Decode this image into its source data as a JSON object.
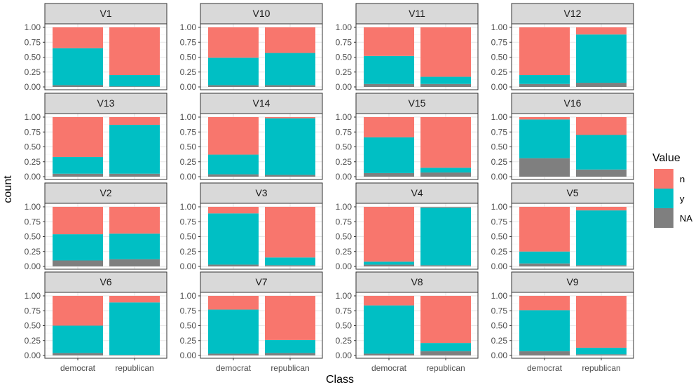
{
  "chart_data": {
    "type": "bar",
    "subtype": "stacked-proportion-facets",
    "xlabel": "Class",
    "ylabel": "count",
    "categories": [
      "democrat",
      "republican"
    ],
    "ylim": [
      0,
      1
    ],
    "yticks": [
      "0.00",
      "0.25",
      "0.50",
      "0.75",
      "1.00"
    ],
    "grid": true,
    "legend": {
      "title": "Value",
      "position": "right",
      "items": [
        {
          "key": "n",
          "label": "n",
          "color": "#F8766D"
        },
        {
          "key": "y",
          "label": "y",
          "color": "#00BFC4"
        },
        {
          "key": "na",
          "label": "NA",
          "color": "#7F7F7F"
        }
      ]
    },
    "facets": [
      {
        "label": "V1",
        "bars": [
          {
            "na": 0.03,
            "y": 0.62,
            "n": 0.35
          },
          {
            "na": 0.01,
            "y": 0.19,
            "n": 0.8
          }
        ]
      },
      {
        "label": "V10",
        "bars": [
          {
            "na": 0.03,
            "y": 0.46,
            "n": 0.51
          },
          {
            "na": 0.03,
            "y": 0.54,
            "n": 0.43
          }
        ]
      },
      {
        "label": "V11",
        "bars": [
          {
            "na": 0.05,
            "y": 0.47,
            "n": 0.48
          },
          {
            "na": 0.05,
            "y": 0.12,
            "n": 0.83
          }
        ]
      },
      {
        "label": "V12",
        "bars": [
          {
            "na": 0.05,
            "y": 0.15,
            "n": 0.8
          },
          {
            "na": 0.07,
            "y": 0.81,
            "n": 0.12
          }
        ]
      },
      {
        "label": "V13",
        "bars": [
          {
            "na": 0.05,
            "y": 0.28,
            "n": 0.67
          },
          {
            "na": 0.05,
            "y": 0.82,
            "n": 0.13
          }
        ]
      },
      {
        "label": "V14",
        "bars": [
          {
            "na": 0.04,
            "y": 0.33,
            "n": 0.63
          },
          {
            "na": 0.03,
            "y": 0.95,
            "n": 0.02
          }
        ]
      },
      {
        "label": "V15",
        "bars": [
          {
            "na": 0.06,
            "y": 0.6,
            "n": 0.34
          },
          {
            "na": 0.07,
            "y": 0.08,
            "n": 0.85
          }
        ]
      },
      {
        "label": "V16",
        "bars": [
          {
            "na": 0.31,
            "y": 0.65,
            "n": 0.04
          },
          {
            "na": 0.12,
            "y": 0.58,
            "n": 0.3
          }
        ]
      },
      {
        "label": "V2",
        "bars": [
          {
            "na": 0.1,
            "y": 0.44,
            "n": 0.46
          },
          {
            "na": 0.12,
            "y": 0.43,
            "n": 0.45
          }
        ]
      },
      {
        "label": "V3",
        "bars": [
          {
            "na": 0.03,
            "y": 0.86,
            "n": 0.11
          },
          {
            "na": 0.02,
            "y": 0.13,
            "n": 0.85
          }
        ]
      },
      {
        "label": "V4",
        "bars": [
          {
            "na": 0.03,
            "y": 0.05,
            "n": 0.92
          },
          {
            "na": 0.02,
            "y": 0.97,
            "n": 0.01
          }
        ]
      },
      {
        "label": "V5",
        "bars": [
          {
            "na": 0.05,
            "y": 0.2,
            "n": 0.75
          },
          {
            "na": 0.02,
            "y": 0.92,
            "n": 0.06
          }
        ]
      },
      {
        "label": "V6",
        "bars": [
          {
            "na": 0.04,
            "y": 0.46,
            "n": 0.5
          },
          {
            "na": 0.01,
            "y": 0.88,
            "n": 0.11
          }
        ]
      },
      {
        "label": "V7",
        "bars": [
          {
            "na": 0.03,
            "y": 0.74,
            "n": 0.23
          },
          {
            "na": 0.04,
            "y": 0.22,
            "n": 0.74
          }
        ]
      },
      {
        "label": "V8",
        "bars": [
          {
            "na": 0.03,
            "y": 0.81,
            "n": 0.16
          },
          {
            "na": 0.07,
            "y": 0.14,
            "n": 0.79
          }
        ]
      },
      {
        "label": "V9",
        "bars": [
          {
            "na": 0.07,
            "y": 0.69,
            "n": 0.24
          },
          {
            "na": 0.02,
            "y": 0.11,
            "n": 0.87
          }
        ]
      }
    ]
  }
}
